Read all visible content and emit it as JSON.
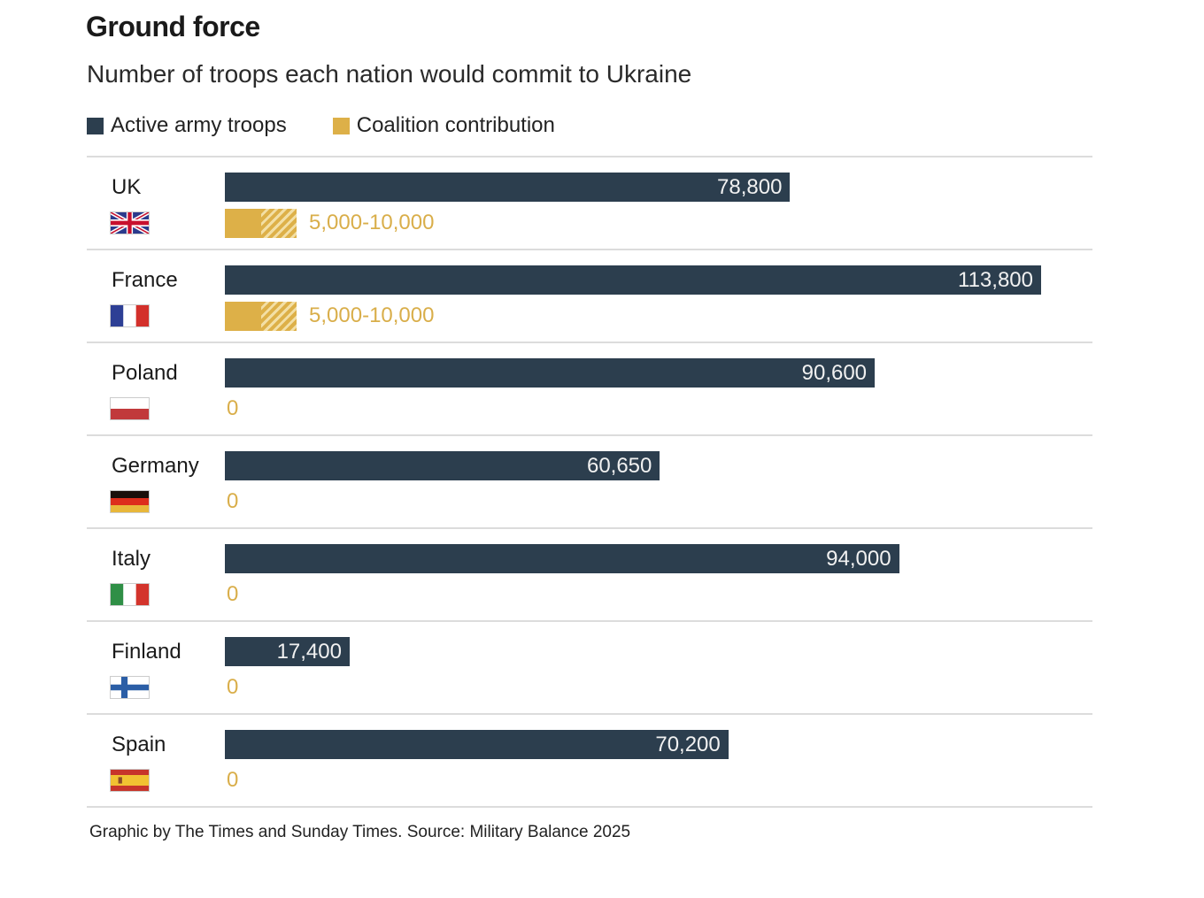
{
  "header": {
    "title": "Ground force",
    "subtitle": "Number of troops each nation would commit to Ukraine"
  },
  "legend": [
    {
      "label": "Active army troops",
      "color": "#2c3e4e"
    },
    {
      "label": "Coalition contribution",
      "color": "#ddb048"
    }
  ],
  "footer": "Graphic by The Times and Sunday Times. Source: Military Balance 2025",
  "chart_data": {
    "type": "bar",
    "orientation": "horizontal",
    "title": "Ground force",
    "subtitle": "Number of troops each nation would commit to Ukraine",
    "xlabel": "",
    "ylabel": "",
    "xlim": [
      0,
      113800
    ],
    "grid": false,
    "legend_position": "top-left",
    "categories": [
      "UK",
      "France",
      "Poland",
      "Germany",
      "Italy",
      "Finland",
      "Spain"
    ],
    "flags": [
      "uk-flag",
      "france-flag",
      "poland-flag",
      "germany-flag",
      "italy-flag",
      "finland-flag",
      "spain-flag"
    ],
    "series": [
      {
        "name": "Active army troops",
        "color": "#2c3e4e",
        "values": [
          78800,
          113800,
          90600,
          60650,
          94000,
          17400,
          70200
        ],
        "labels": [
          "78,800",
          "113,800",
          "90,600",
          "60,650",
          "94,000",
          "17,400",
          "70,200"
        ]
      },
      {
        "name": "Coalition contribution",
        "color": "#ddb048",
        "values_min": [
          5000,
          5000,
          0,
          0,
          0,
          0,
          0
        ],
        "values_max": [
          10000,
          10000,
          0,
          0,
          0,
          0,
          0
        ],
        "labels": [
          "5,000-10,000",
          "5,000-10,000",
          "0",
          "0",
          "0",
          "0",
          "0"
        ]
      }
    ]
  }
}
